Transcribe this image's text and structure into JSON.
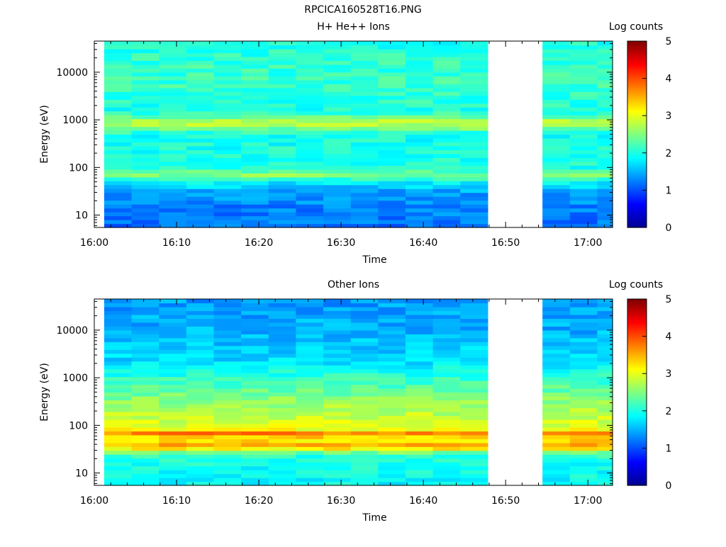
{
  "figure": {
    "title": "RPCICA160528T16.PNG"
  },
  "colormap": {
    "name": "jet",
    "stops": [
      "#00008f",
      "#0000ff",
      "#00ffff",
      "#ffff00",
      "#ff0000",
      "#800000"
    ]
  },
  "chart_data": [
    {
      "type": "heatmap",
      "title": "H+ He++ Ions",
      "xlabel": "Time",
      "ylabel": "Energy (eV)",
      "colorbar_label": "Log counts",
      "x_tick_labels": [
        "16:00",
        "16:10",
        "16:20",
        "16:30",
        "16:40",
        "16:50",
        "17:00"
      ],
      "x_range_minutes": [
        0,
        63
      ],
      "y_scale": "log",
      "y_range": [
        5.5,
        45000
      ],
      "y_ticks": [
        10,
        100,
        1000,
        10000
      ],
      "y_tick_labels": [
        "10",
        "100",
        "1000",
        "10000"
      ],
      "z_range": [
        0,
        5
      ],
      "z_tick_labels": [
        "0",
        "1",
        "2",
        "3",
        "4",
        "5"
      ],
      "data_gaps_minutes": [
        [
          46,
          52.5
        ],
        [
          62,
          63
        ]
      ],
      "data_start_minutes": 1.2,
      "energy_profile": [
        {
          "energy_eV": 7,
          "log_counts": 1.2
        },
        {
          "energy_eV": 12,
          "log_counts": 1.25
        },
        {
          "energy_eV": 20,
          "log_counts": 1.3
        },
        {
          "energy_eV": 30,
          "log_counts": 1.4
        },
        {
          "energy_eV": 40,
          "log_counts": 1.65
        },
        {
          "energy_eV": 50,
          "log_counts": 1.85
        },
        {
          "energy_eV": 70,
          "log_counts": 2.55
        },
        {
          "energy_eV": 100,
          "log_counts": 2.0
        },
        {
          "energy_eV": 200,
          "log_counts": 2.0
        },
        {
          "energy_eV": 500,
          "log_counts": 1.95
        },
        {
          "energy_eV": 850,
          "log_counts": 2.9
        },
        {
          "energy_eV": 1500,
          "log_counts": 2.0
        },
        {
          "energy_eV": 5000,
          "log_counts": 2.15
        },
        {
          "energy_eV": 20000,
          "log_counts": 2.1
        },
        {
          "energy_eV": 45000,
          "log_counts": 2.0
        }
      ]
    },
    {
      "type": "heatmap",
      "title": "Other Ions",
      "xlabel": "Time",
      "ylabel": "Energy (eV)",
      "colorbar_label": "Log counts",
      "x_tick_labels": [
        "16:00",
        "16:10",
        "16:20",
        "16:30",
        "16:40",
        "16:50",
        "17:00"
      ],
      "x_range_minutes": [
        0,
        63
      ],
      "y_scale": "log",
      "y_range": [
        5.5,
        45000
      ],
      "y_ticks": [
        10,
        100,
        1000,
        10000
      ],
      "y_tick_labels": [
        "10",
        "100",
        "1000",
        "10000"
      ],
      "z_range": [
        0,
        5
      ],
      "z_tick_labels": [
        "0",
        "1",
        "2",
        "3",
        "4",
        "5"
      ],
      "data_gaps_minutes": [
        [
          46,
          52.5
        ],
        [
          62,
          63
        ]
      ],
      "data_start_minutes": 1.2,
      "energy_profile": [
        {
          "energy_eV": 7,
          "log_counts": 1.9
        },
        {
          "energy_eV": 15,
          "log_counts": 1.95
        },
        {
          "energy_eV": 25,
          "log_counts": 2.1
        },
        {
          "energy_eV": 32,
          "log_counts": 3.1
        },
        {
          "energy_eV": 38,
          "log_counts": 3.6
        },
        {
          "energy_eV": 45,
          "log_counts": 3.3
        },
        {
          "energy_eV": 55,
          "log_counts": 3.2
        },
        {
          "energy_eV": 68,
          "log_counts": 3.8
        },
        {
          "energy_eV": 85,
          "log_counts": 3.0
        },
        {
          "energy_eV": 150,
          "log_counts": 2.85
        },
        {
          "energy_eV": 400,
          "log_counts": 2.5
        },
        {
          "energy_eV": 1000,
          "log_counts": 2.1
        },
        {
          "energy_eV": 2500,
          "log_counts": 1.7
        },
        {
          "energy_eV": 10000,
          "log_counts": 1.5
        },
        {
          "energy_eV": 45000,
          "log_counts": 1.4
        }
      ]
    }
  ]
}
